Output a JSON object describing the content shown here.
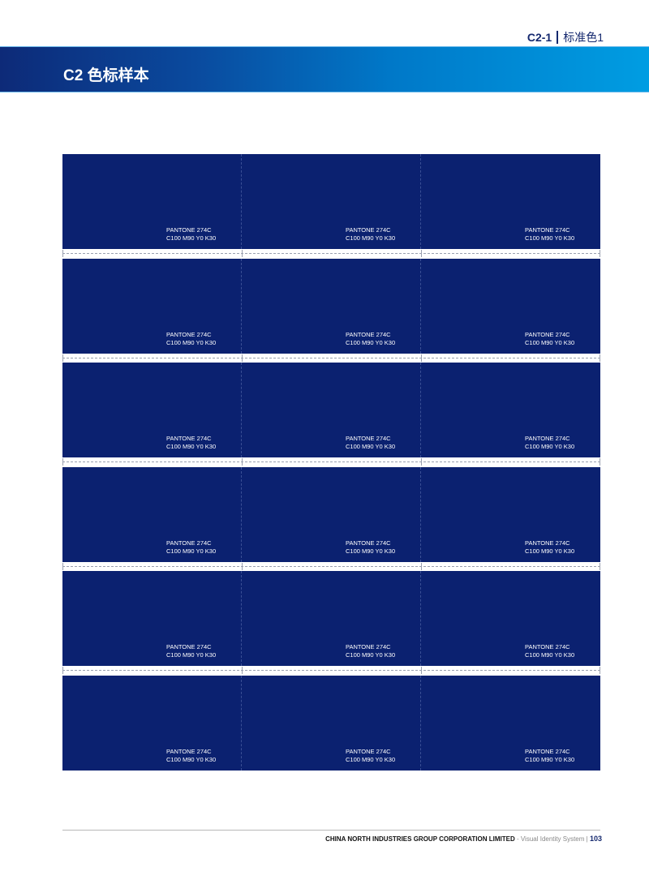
{
  "header": {
    "section_code": "C2-1",
    "section_name": "标准色1",
    "title": "C2 色标样本",
    "band_gradient": [
      "#0d2a78",
      "#009de2"
    ]
  },
  "swatch_color": "#0b2170",
  "swatches": [
    [
      {
        "pantone": "PANTONE 274C",
        "cmyk": "C100 M90 Y0 K30"
      },
      {
        "pantone": "PANTONE 274C",
        "cmyk": "C100 M90 Y0 K30"
      },
      {
        "pantone": "PANTONE 274C",
        "cmyk": "C100 M90 Y0 K30"
      }
    ],
    [
      {
        "pantone": "PANTONE 274C",
        "cmyk": "C100 M90 Y0 K30"
      },
      {
        "pantone": "PANTONE 274C",
        "cmyk": "C100 M90 Y0 K30"
      },
      {
        "pantone": "PANTONE 274C",
        "cmyk": "C100 M90 Y0 K30"
      }
    ],
    [
      {
        "pantone": "PANTONE 274C",
        "cmyk": "C100 M90 Y0 K30"
      },
      {
        "pantone": "PANTONE 274C",
        "cmyk": "C100 M90 Y0 K30"
      },
      {
        "pantone": "PANTONE 274C",
        "cmyk": "C100 M90 Y0 K30"
      }
    ],
    [
      {
        "pantone": "PANTONE 274C",
        "cmyk": "C100 M90 Y0 K30"
      },
      {
        "pantone": "PANTONE 274C",
        "cmyk": "C100 M90 Y0 K30"
      },
      {
        "pantone": "PANTONE 274C",
        "cmyk": "C100 M90 Y0 K30"
      }
    ],
    [
      {
        "pantone": "PANTONE 274C",
        "cmyk": "C100 M90 Y0 K30"
      },
      {
        "pantone": "PANTONE 274C",
        "cmyk": "C100 M90 Y0 K30"
      },
      {
        "pantone": "PANTONE 274C",
        "cmyk": "C100 M90 Y0 K30"
      }
    ],
    [
      {
        "pantone": "PANTONE 274C",
        "cmyk": "C100 M90 Y0 K30"
      },
      {
        "pantone": "PANTONE 274C",
        "cmyk": "C100 M90 Y0 K30"
      },
      {
        "pantone": "PANTONE 274C",
        "cmyk": "C100 M90 Y0 K30"
      }
    ]
  ],
  "footer": {
    "corporation": "CHINA NORTH INDUSTRIES GROUP CORPORATION LIMITED",
    "system": "- Visual Identity System",
    "separator": "|",
    "page_number": "103"
  }
}
